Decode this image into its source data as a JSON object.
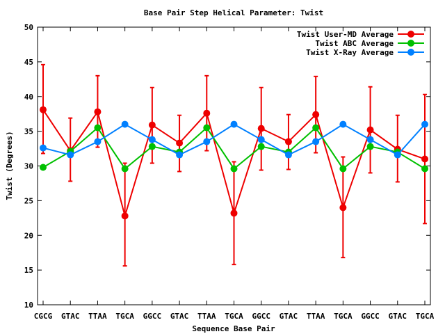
{
  "chart_data": {
    "type": "line",
    "title": "Base Pair Step Helical Parameter: Twist",
    "xlabel": "Sequence Base Pair",
    "ylabel": "Twist (Degrees)",
    "ylim": [
      10,
      50
    ],
    "yticks": [
      "10",
      "15",
      "20",
      "25",
      "30",
      "35",
      "40",
      "45",
      "50"
    ],
    "categories": [
      "CGCG",
      "GTAC",
      "TTAA",
      "TGCA",
      "GGCC",
      "GTAC",
      "TTAA",
      "TGCA",
      "GGCC",
      "GTAC",
      "TTAA",
      "TGCA",
      "GGCC",
      "GTAC",
      "TGCA"
    ],
    "legend_position": "top-right",
    "grid": false,
    "series": [
      {
        "name": "Twist User-MD Average",
        "color": "#ee0000",
        "values": [
          38.1,
          32.2,
          37.8,
          22.8,
          35.9,
          33.3,
          37.6,
          23.2,
          35.4,
          33.5,
          37.4,
          24.0,
          35.2,
          32.4,
          31.0
        ],
        "err_low": [
          31.8,
          27.8,
          32.7,
          15.6,
          30.4,
          29.2,
          32.2,
          15.8,
          29.4,
          29.5,
          31.9,
          16.8,
          29.0,
          27.7,
          21.7
        ],
        "err_high": [
          44.6,
          36.9,
          43.0,
          30.4,
          41.3,
          37.3,
          43.0,
          30.6,
          41.3,
          37.4,
          42.9,
          31.3,
          41.4,
          37.3,
          40.3
        ]
      },
      {
        "name": "Twist ABC Average",
        "color": "#00c000",
        "values": [
          29.8,
          32.1,
          35.5,
          29.6,
          32.8,
          32.0,
          35.5,
          29.6,
          32.8,
          32.0,
          35.5,
          29.6,
          32.8,
          32.0,
          29.6
        ]
      },
      {
        "name": "Twist X-Ray Average",
        "color": "#0080ff",
        "values": [
          32.6,
          31.6,
          33.5,
          36.0,
          33.8,
          31.6,
          33.5,
          36.0,
          33.8,
          31.6,
          33.5,
          36.0,
          33.8,
          31.6,
          36.0
        ]
      }
    ]
  }
}
